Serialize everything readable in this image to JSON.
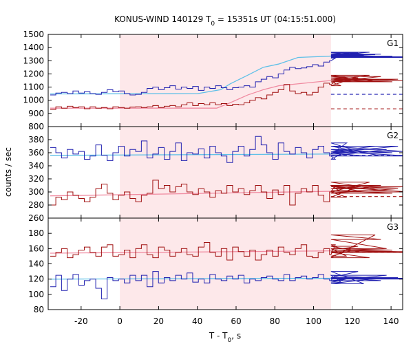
{
  "title": {
    "prefix": "KONUS-WIND 140129 T",
    "subscript": "0",
    "suffix": " = 15351s UT (04:15:51.000)"
  },
  "xlabel": {
    "prefix": "T - T",
    "subscript": "0",
    "suffix": ", s"
  },
  "ylabel": "counts / sec",
  "colors": {
    "highlight": "#fde8ea",
    "blue": "#2020b0",
    "red": "#a01010",
    "blue_fit": "#5fc0e8",
    "red_fit": "#f08aa0"
  },
  "chart_data": {
    "type": "line",
    "xlim": [
      -37,
      146
    ],
    "xticks": [
      -20,
      0,
      20,
      40,
      60,
      80,
      100,
      120,
      140
    ],
    "highlight_interval": [
      0,
      109
    ],
    "bin_width": 2.944,
    "data_start": -36,
    "data_end": 109,
    "background_end": 146,
    "panels": [
      {
        "name": "G1",
        "ylim": [
          800,
          1500
        ],
        "yticks": [
          800,
          900,
          1000,
          1100,
          1200,
          1300,
          1400,
          1500
        ],
        "series": [
          {
            "color_key": "blue",
            "values": [
              1040,
              1055,
              1060,
              1050,
              1070,
              1055,
              1065,
              1050,
              1045,
              1060,
              1080,
              1065,
              1070,
              1050,
              1040,
              1045,
              1060,
              1090,
              1100,
              1080,
              1095,
              1110,
              1085,
              1100,
              1090,
              1105,
              1075,
              1100,
              1090,
              1110,
              1095,
              1080,
              1095,
              1100,
              1110,
              1100,
              1140,
              1160,
              1180,
              1170,
              1200,
              1230,
              1250,
              1240,
              1245,
              1255,
              1270,
              1260,
              1290,
              1300,
              1320,
              1340,
              1330,
              1350,
              1360,
              1340,
              1365,
              1345,
              1350,
              1330,
              1335,
              1330,
              1325,
              1330
            ],
            "background": 1045
          },
          {
            "color_key": "red",
            "values": [
              930,
              950,
              940,
              955,
              945,
              950,
              935,
              950,
              940,
              945,
              935,
              950,
              945,
              940,
              948,
              950,
              945,
              950,
              960,
              945,
              955,
              960,
              950,
              965,
              980,
              960,
              975,
              965,
              980,
              965,
              975,
              960,
              970,
              965,
              980,
              1000,
              1020,
              1010,
              1040,
              1060,
              1080,
              1120,
              1070,
              1050,
              1060,
              1040,
              1060,
              1100,
              1130,
              1120,
              1140,
              1110,
              1150,
              1160,
              1170,
              1150,
              1190,
              1140,
              1180,
              1150,
              1140,
              1160,
              1150,
              1150
            ],
            "background": 935
          }
        ],
        "fits": [
          {
            "color_key": "blue_fit",
            "x": [
              -36,
              40,
              52,
              57,
              66,
              74,
              82,
              92,
              109
            ],
            "y": [
              1048,
              1050,
              1080,
              1125,
              1190,
              1250,
              1275,
              1325,
              1335
            ]
          },
          {
            "color_key": "red_fit",
            "x": [
              -36,
              50,
              56,
              66,
              74,
              82,
              109
            ],
            "y": [
              940,
              940,
              975,
              1040,
              1080,
              1110,
              1150
            ]
          }
        ]
      },
      {
        "name": "G2",
        "ylim": [
          260,
          400
        ],
        "yticks": [
          260,
          280,
          300,
          320,
          340,
          360,
          380
        ],
        "series": [
          {
            "color_key": "blue",
            "values": [
              368,
              360,
              352,
              365,
              358,
              362,
              350,
              355,
              372,
              356,
              348,
              360,
              370,
              355,
              365,
              362,
              378,
              352,
              358,
              368,
              350,
              362,
              375,
              348,
              360,
              358,
              366,
              352,
              370,
              360,
              355,
              345,
              362,
              370,
              355,
              365,
              385,
              372,
              360,
              350,
              375,
              362,
              358,
              368,
              360,
              352,
              365,
              370,
              360,
              355,
              350,
              358,
              375,
              365,
              360,
              355,
              362,
              370,
              355,
              365,
              360,
              370,
              362,
              355
            ],
            "background": 356
          },
          {
            "color_key": "red",
            "values": [
              280,
              292,
              288,
              300,
              295,
              290,
              285,
              292,
              305,
              312,
              298,
              288,
              295,
              300,
              290,
              285,
              295,
              298,
              318,
              305,
              310,
              300,
              308,
              312,
              300,
              296,
              305,
              300,
              292,
              302,
              298,
              310,
              300,
              305,
              296,
              302,
              310,
              300,
              290,
              303,
              296,
              310,
              280,
              298,
              305,
              300,
              310,
              295,
              285,
              300,
              310,
              300,
              292,
              305,
              310,
              300,
              315,
              305,
              310,
              302,
              298,
              305,
              308,
              300
            ],
            "background": 293
          }
        ],
        "fits": [
          {
            "color_key": "blue_fit",
            "x": [
              -36,
              109
            ],
            "y": [
              356,
              358
            ]
          },
          {
            "color_key": "red_fit",
            "x": [
              -36,
              109
            ],
            "y": [
              294,
              301
            ]
          }
        ]
      },
      {
        "name": "G3",
        "ylim": [
          80,
          200
        ],
        "yticks": [
          80,
          100,
          120,
          140,
          160,
          180
        ],
        "series": [
          {
            "color_key": "blue",
            "values": [
              110,
              125,
              105,
              120,
              126,
              112,
              118,
              120,
              108,
              94,
              122,
              118,
              120,
              115,
              125,
              118,
              125,
              110,
              130,
              115,
              122,
              118,
              125,
              120,
              128,
              116,
              120,
              115,
              126,
              120,
              118,
              124,
              120,
              125,
              115,
              120,
              118,
              122,
              124,
              120,
              118,
              126,
              118,
              122,
              124,
              120,
              122,
              126,
              120,
              118,
              125,
              116,
              120,
              122,
              130,
              114,
              120,
              122,
              118,
              125,
              120,
              122,
              120,
              121
            ],
            "background": 121
          },
          {
            "color_key": "red",
            "values": [
              150,
              155,
              160,
              148,
              152,
              158,
              162,
              155,
              150,
              162,
              165,
              150,
              152,
              158,
              148,
              160,
              165,
              152,
              148,
              162,
              158,
              150,
              155,
              160,
              152,
              150,
              162,
              168,
              155,
              150,
              160,
              145,
              162,
              156,
              150,
              158,
              145,
              152,
              158,
              150,
              162,
              155,
              152,
              160,
              165,
              150,
              148,
              155,
              160,
              152,
              165,
              160,
              150,
              158,
              163,
              155,
              148,
              178,
              172,
              160,
              158,
              156,
              155,
              156
            ],
            "background": 155
          }
        ],
        "fits": [
          {
            "color_key": "blue_fit",
            "x": [
              -36,
              109
            ],
            "y": [
              120,
              121
            ]
          },
          {
            "color_key": "red_fit",
            "x": [
              -36,
              109
            ],
            "y": [
              154,
              157
            ]
          }
        ]
      }
    ]
  }
}
